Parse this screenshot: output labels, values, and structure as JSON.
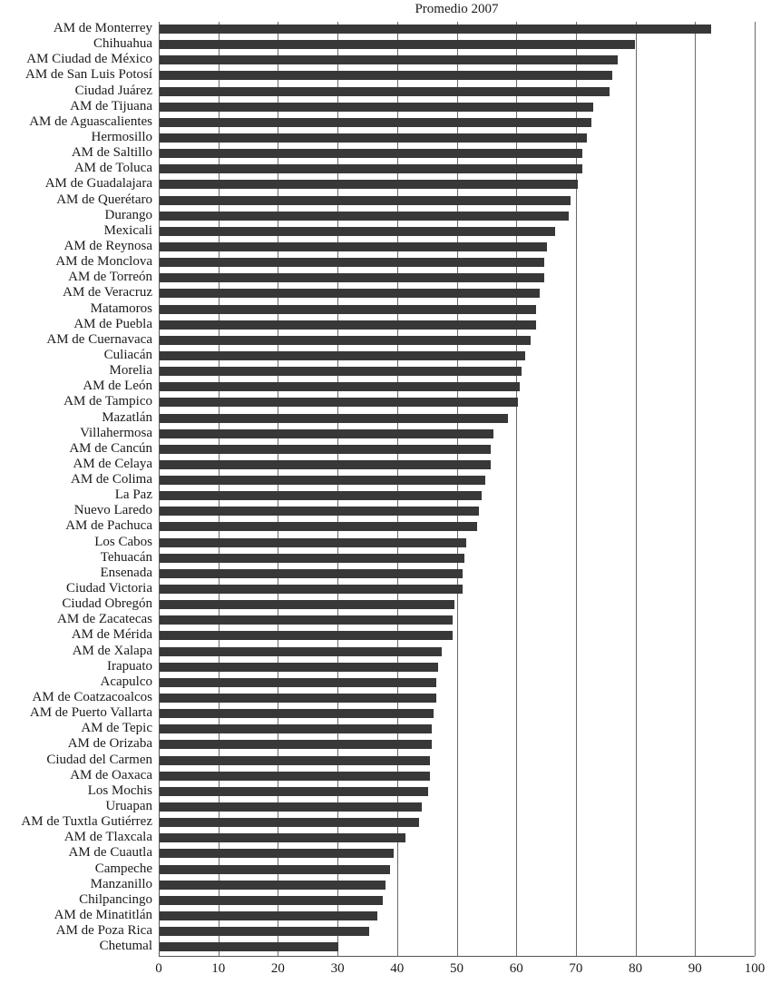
{
  "chart_data": {
    "type": "bar",
    "orientation": "horizontal",
    "title": "Promedio 2007",
    "xlabel": "",
    "ylabel": "",
    "xlim": [
      0,
      100
    ],
    "xticks": [
      0,
      10,
      20,
      30,
      40,
      50,
      60,
      70,
      80,
      90,
      100
    ],
    "grid": "vertical",
    "legend": null,
    "bar_color": "#383838",
    "categories": [
      "AM de Monterrey",
      "Chihuahua",
      "AM Ciudad de México",
      "AM de San Luis Potosí",
      "Ciudad Juárez",
      "AM de Tijuana",
      "AM de Aguascalientes",
      "Hermosillo",
      "AM de Saltillo",
      "AM de Toluca",
      "AM de Guadalajara",
      "AM de Querétaro",
      "Durango",
      "Mexicali",
      "AM de Reynosa",
      "AM de Monclova",
      "AM de Torreón",
      "AM de Veracruz",
      "Matamoros",
      "AM de Puebla",
      "AM de Cuernavaca",
      "Culiacán",
      "Morelia",
      "AM de León",
      "AM de Tampico",
      "Mazatlán",
      "Villahermosa",
      "AM de Cancún",
      "AM de Celaya",
      "AM de Colima",
      "La Paz",
      "Nuevo Laredo",
      "AM de Pachuca",
      "Los Cabos",
      "Tehuacán",
      "Ensenada",
      "Ciudad Victoria",
      "Ciudad Obregón",
      "AM de Zacatecas",
      "AM de Mérida",
      "AM de Xalapa",
      "Irapuato",
      "Acapulco",
      "AM de Coatzacoalcos",
      "AM de Puerto Vallarta",
      "AM de Tepic",
      "AM de Orizaba",
      "Ciudad del Carmen",
      "AM de Oaxaca",
      "Los Mochis",
      "Uruapan",
      "AM de Tuxtla Gutiérrez",
      "AM de Tlaxcala",
      "AM de Cuautla",
      "Campeche",
      "Manzanillo",
      "Chilpancingo",
      "AM de Minatitlán",
      "AM de Poza Rica",
      "Chetumal"
    ],
    "values": [
      92.6,
      79.8,
      76.9,
      75.9,
      75.5,
      72.7,
      72.4,
      71.7,
      71.0,
      71.0,
      70.1,
      69.0,
      68.6,
      66.3,
      65.0,
      64.6,
      64.6,
      63.8,
      63.2,
      63.2,
      62.2,
      61.4,
      60.8,
      60.5,
      60.1,
      58.4,
      56.0,
      55.6,
      55.6,
      54.6,
      54.0,
      53.6,
      53.2,
      51.5,
      51.1,
      50.9,
      50.9,
      49.5,
      49.1,
      49.1,
      47.4,
      46.7,
      46.4,
      46.4,
      46.0,
      45.6,
      45.6,
      45.4,
      45.4,
      45.0,
      44.0,
      43.6,
      41.3,
      39.3,
      38.6,
      37.9,
      37.5,
      36.5,
      35.1,
      30.0
    ]
  }
}
